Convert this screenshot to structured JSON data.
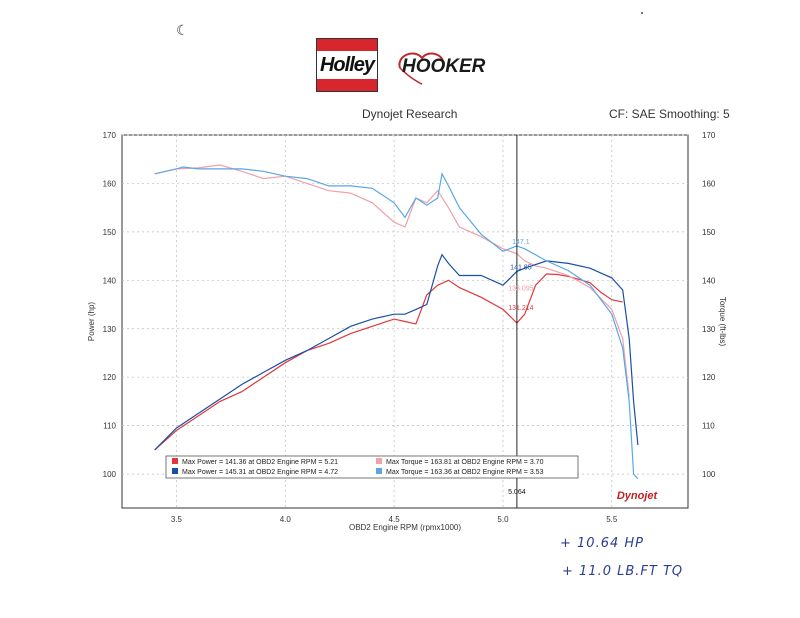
{
  "header": {
    "holley_logo_text": "Holley",
    "hooker_logo_text": "HOOKER",
    "center_title": "Dynojet Research",
    "right_title": "CF: SAE Smoothing: 5"
  },
  "chart_data": {
    "type": "line",
    "xlabel": "OBD2 Engine RPM (rpmx1000)",
    "ylabel_left": "Power (hp)",
    "ylabel_right": "Torque (ft-lbs)",
    "xlim": [
      3.25,
      5.85
    ],
    "ylim": [
      93,
      170
    ],
    "xticks": [
      "3.5",
      "4.0",
      "4.5",
      "5.0",
      "5.5"
    ],
    "yticks": [
      "100",
      "110",
      "120",
      "130",
      "140",
      "150",
      "160",
      "170"
    ],
    "grid": true,
    "cursor": {
      "x": 5.064,
      "label": "5.064",
      "values": [
        "147.1",
        "141.85",
        "133.095",
        "131.214"
      ]
    },
    "legend": [
      {
        "text": "Max Power = 141.36 at OBD2 Engine RPM = 5.21",
        "color": "#e0383c"
      },
      {
        "text": "Max Torque = 163.81 at OBD2 Engine RPM = 3.70",
        "color": "#f0a0a8"
      },
      {
        "text": "Max Power = 145.31 at OBD2 Engine RPM = 4.72",
        "color": "#1a4fa6"
      },
      {
        "text": "Max Torque = 163.36 at OBD2 Engine RPM = 3.53",
        "color": "#5aa6e6"
      }
    ],
    "series": [
      {
        "color": "#e0383c",
        "x": [
          3.4,
          3.5,
          3.6,
          3.7,
          3.8,
          3.9,
          4.0,
          4.1,
          4.2,
          4.3,
          4.4,
          4.5,
          4.55,
          4.6,
          4.65,
          4.7,
          4.75,
          4.8,
          4.9,
          5.0,
          5.064,
          5.1,
          5.15,
          5.2,
          5.25,
          5.3,
          5.35,
          5.4,
          5.45,
          5.5,
          5.55
        ],
        "values": [
          105,
          109,
          112,
          115,
          117,
          120,
          123,
          125.5,
          127,
          129,
          130.5,
          132,
          131.5,
          131,
          137,
          139,
          140,
          138.5,
          136.5,
          134,
          131.2,
          133,
          139,
          141.3,
          141.2,
          140.8,
          140.2,
          139.5,
          137.5,
          136,
          135.5
        ]
      },
      {
        "color": "#f0a0a8",
        "x": [
          3.4,
          3.5,
          3.6,
          3.7,
          3.8,
          3.9,
          4.0,
          4.1,
          4.2,
          4.3,
          4.4,
          4.45,
          4.5,
          4.55,
          4.6,
          4.65,
          4.7,
          4.75,
          4.8,
          4.9,
          5.0,
          5.064,
          5.1,
          5.15,
          5.2,
          5.3,
          5.4,
          5.5,
          5.55,
          5.58
        ],
        "values": [
          162,
          163,
          163.2,
          163.8,
          162.5,
          161,
          161.5,
          160,
          158.5,
          158,
          156,
          154,
          152,
          151,
          157,
          156,
          158.5,
          155,
          151,
          149,
          146.5,
          145.5,
          144,
          143,
          142.5,
          141,
          138.5,
          134,
          128,
          116
        ]
      },
      {
        "color": "#1a4fa6",
        "x": [
          3.4,
          3.5,
          3.6,
          3.7,
          3.8,
          3.9,
          4.0,
          4.1,
          4.2,
          4.3,
          4.4,
          4.5,
          4.55,
          4.6,
          4.65,
          4.7,
          4.72,
          4.75,
          4.8,
          4.9,
          5.0,
          5.064,
          5.1,
          5.2,
          5.3,
          5.4,
          5.5,
          5.55,
          5.58,
          5.6,
          5.62
        ],
        "values": [
          105,
          109.5,
          112.5,
          115.5,
          118.5,
          121,
          123.5,
          125.5,
          128,
          130.5,
          132,
          133,
          133,
          134,
          135,
          143,
          145.3,
          143.5,
          141,
          141,
          139,
          141.85,
          142.5,
          144,
          143.5,
          142.5,
          140.5,
          138,
          128,
          115,
          106
        ]
      },
      {
        "color": "#5aa6e6",
        "x": [
          3.4,
          3.5,
          3.53,
          3.6,
          3.7,
          3.8,
          3.9,
          4.0,
          4.1,
          4.2,
          4.3,
          4.4,
          4.5,
          4.55,
          4.6,
          4.65,
          4.7,
          4.72,
          4.75,
          4.8,
          4.9,
          5.0,
          5.064,
          5.1,
          5.2,
          5.3,
          5.4,
          5.5,
          5.55,
          5.58,
          5.6,
          5.62
        ],
        "values": [
          162,
          163,
          163.4,
          163,
          163,
          163,
          162.5,
          161.5,
          161,
          159.5,
          159.5,
          159,
          156,
          153,
          157,
          155.5,
          157,
          162,
          159.5,
          155,
          149.5,
          146,
          147.1,
          146.5,
          144,
          142,
          139,
          133,
          126,
          115,
          100,
          99
        ]
      }
    ]
  },
  "badge": {
    "text": "Dynojet"
  },
  "notes": {
    "line1": "+ 10.64  HP",
    "line2": "+ 11.0  LB.FT  TQ"
  }
}
